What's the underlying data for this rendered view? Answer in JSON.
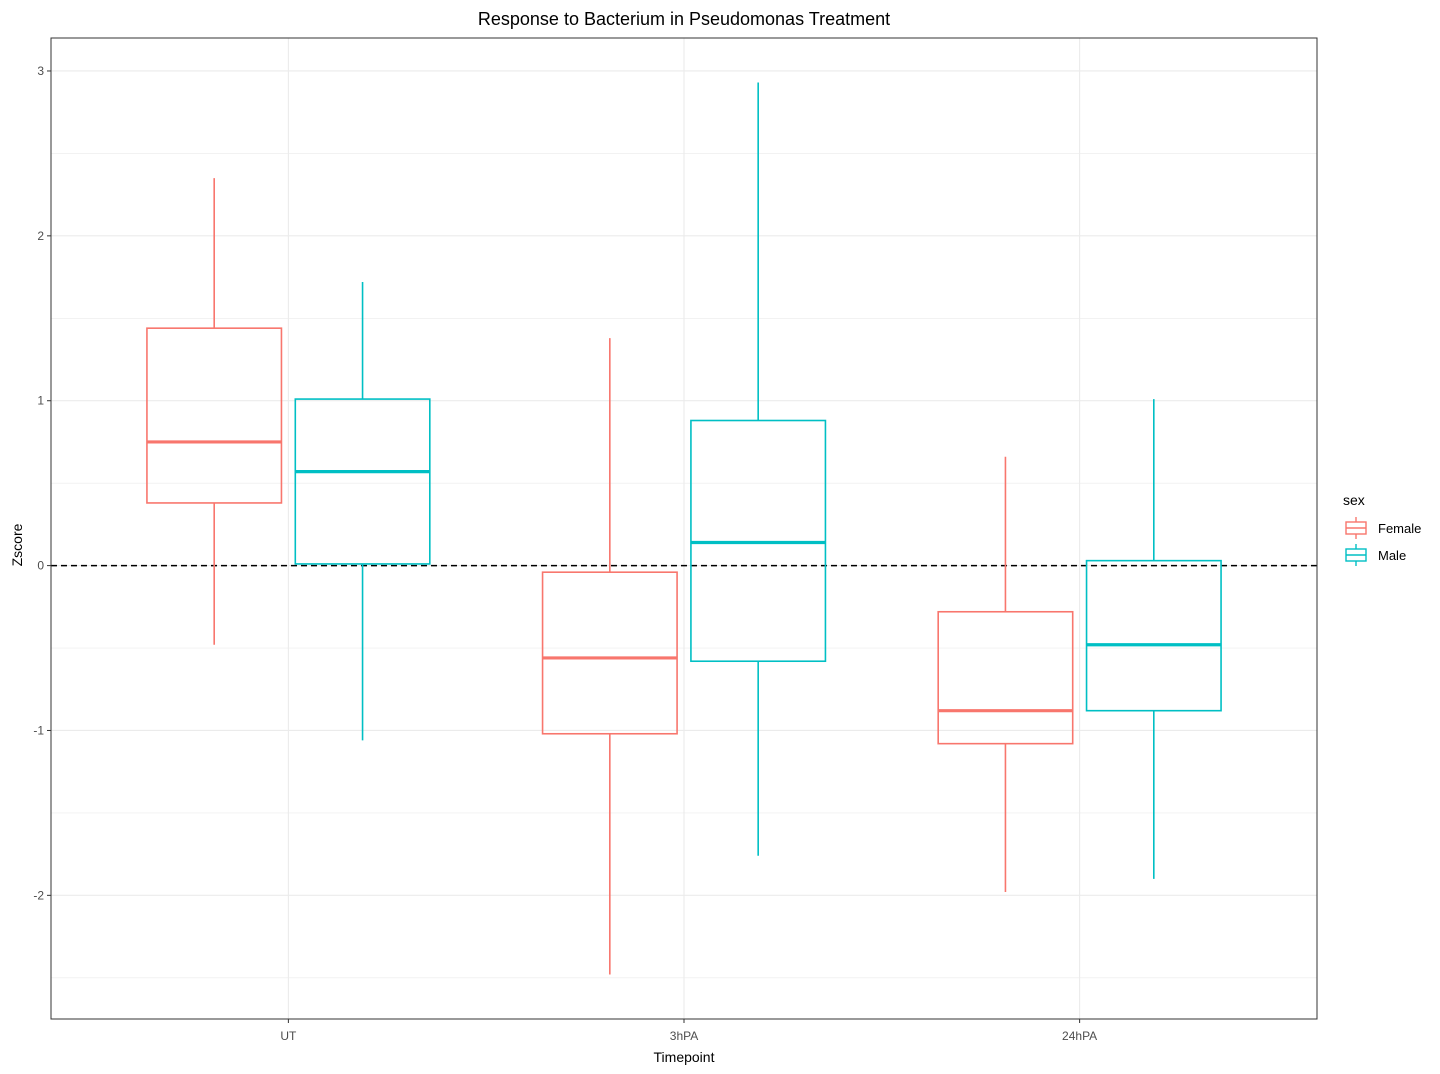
{
  "chart_data": {
    "type": "boxplot",
    "title": "Response to Bacterium in Pseudomonas Treatment",
    "xlabel": "Timepoint",
    "ylabel": "Zscore",
    "categories": [
      "UT",
      "3hPA",
      "24hPA"
    ],
    "ylim": [
      -2.75,
      3.2
    ],
    "yticks": [
      -2,
      -1,
      0,
      1,
      2,
      3
    ],
    "grid": true,
    "reference_line": {
      "y": 0,
      "style": "dashed",
      "color": "#000000"
    },
    "legend": {
      "title": "sex",
      "position": "right"
    },
    "series": [
      {
        "name": "Female",
        "color": "#F8766D",
        "boxes": [
          {
            "category": "UT",
            "whisker_low": -0.48,
            "q1": 0.38,
            "median": 0.75,
            "q3": 1.44,
            "whisker_high": 2.35
          },
          {
            "category": "3hPA",
            "whisker_low": -2.48,
            "q1": -1.02,
            "median": -0.56,
            "q3": -0.04,
            "whisker_high": 1.38
          },
          {
            "category": "24hPA",
            "whisker_low": -1.98,
            "q1": -1.08,
            "median": -0.88,
            "q3": -0.28,
            "whisker_high": 0.66
          }
        ]
      },
      {
        "name": "Male",
        "color": "#00BFC4",
        "boxes": [
          {
            "category": "UT",
            "whisker_low": -1.06,
            "q1": 0.01,
            "median": 0.57,
            "q3": 1.01,
            "whisker_high": 1.72
          },
          {
            "category": "3hPA",
            "whisker_low": -1.76,
            "q1": -0.58,
            "median": 0.14,
            "q3": 0.88,
            "whisker_high": 2.93
          },
          {
            "category": "24hPA",
            "whisker_low": -1.9,
            "q1": -0.88,
            "median": -0.48,
            "q3": 0.03,
            "whisker_high": 1.01
          }
        ]
      }
    ]
  }
}
